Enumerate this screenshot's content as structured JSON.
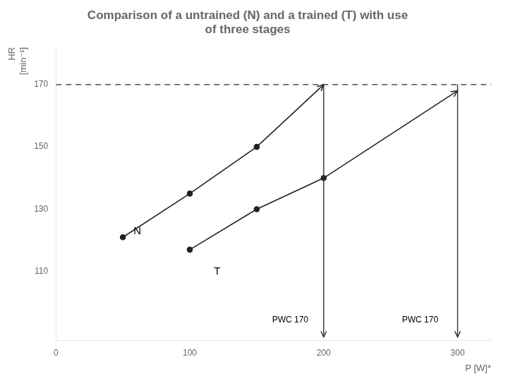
{
  "chart_data": {
    "type": "line",
    "title": [
      "Comparison of a untrained (N) and a trained (T) with use",
      "of three stages"
    ],
    "x_label": "P [W]*",
    "y_label": [
      "HR",
      "[min⁻¹]"
    ],
    "xlim": [
      0,
      325
    ],
    "ylim": [
      88,
      182
    ],
    "xticks": [
      0,
      100,
      200,
      300
    ],
    "yticks": [
      110,
      130,
      150,
      170
    ],
    "grid": false,
    "series": [
      {
        "name": "N",
        "color": "#222222",
        "marker": "circle",
        "x": [
          50,
          100,
          150,
          200
        ],
        "values": [
          121,
          135,
          150,
          170
        ]
      },
      {
        "name": "T",
        "color": "#222222",
        "marker": "circle",
        "x": [
          100,
          150,
          200,
          300
        ],
        "values": [
          117,
          130,
          140,
          168
        ]
      }
    ],
    "reference_lines": [
      {
        "y": 170,
        "color": "#666666",
        "line_style": "dashed"
      }
    ],
    "arrows": [
      {
        "x": 200,
        "y_from": 170,
        "y_to": 89,
        "color": "#333333"
      },
      {
        "x": 300,
        "y_from": 170,
        "y_to": 89,
        "color": "#333333"
      }
    ],
    "annotations": [
      {
        "text": "N",
        "x": 58,
        "y": 123
      },
      {
        "text": "T",
        "x": 118,
        "y": 110
      },
      {
        "text": "PWC 170",
        "x": 175,
        "y": 93
      },
      {
        "text": "PWC 170",
        "x": 272,
        "y": 93
      }
    ]
  }
}
